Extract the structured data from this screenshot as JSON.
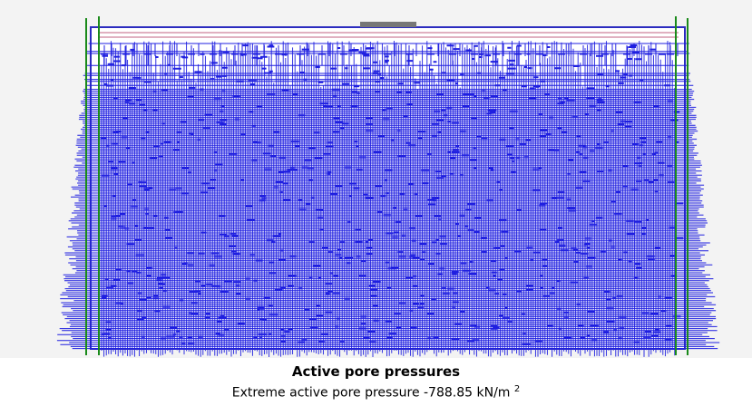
{
  "caption": {
    "title": "Active pore pressures",
    "extreme_label": "Extreme active pore pressure -788.85 kN/m",
    "superscript": "2"
  }
}
